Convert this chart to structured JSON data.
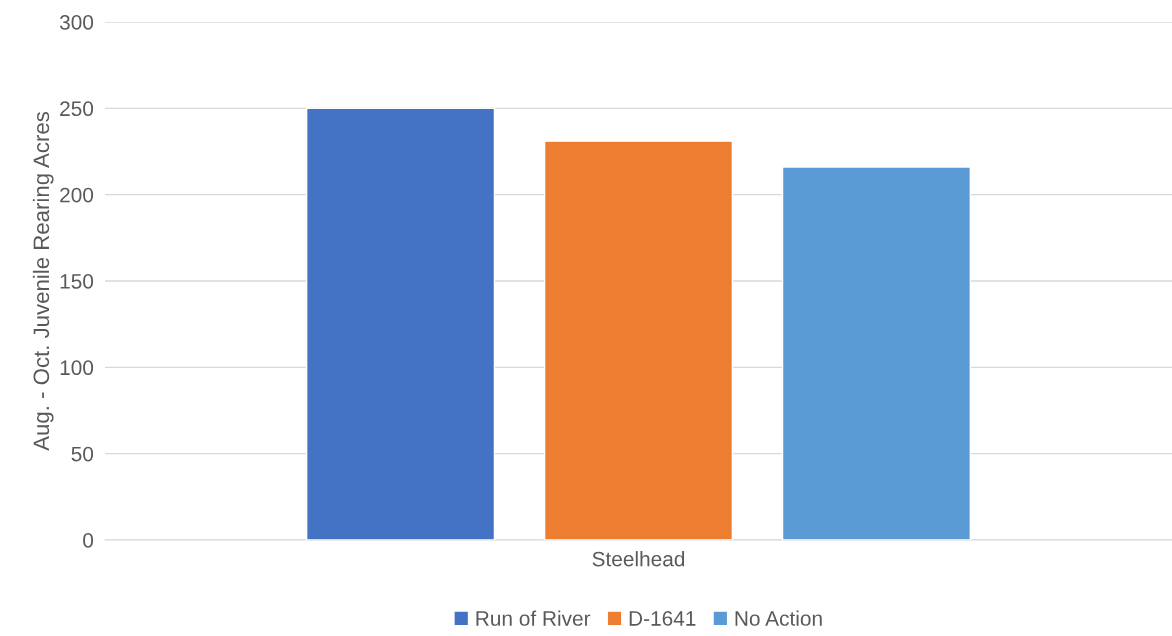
{
  "chart_data": {
    "type": "bar",
    "ylabel": "Aug. - Oct. Juvenile Rearing Acres",
    "categories": [
      "Steelhead"
    ],
    "series": [
      {
        "name": "Run of River",
        "color": "#4472c4",
        "values": [
          250
        ]
      },
      {
        "name": "D-1641",
        "color": "#ed7d31",
        "values": [
          231
        ]
      },
      {
        "name": "No Action",
        "color": "#5b9bd5",
        "values": [
          216
        ]
      }
    ],
    "ylim": [
      0,
      300
    ],
    "yticks": [
      0,
      50,
      100,
      150,
      200,
      250,
      300
    ],
    "grid": "y",
    "legend": "bottom"
  }
}
